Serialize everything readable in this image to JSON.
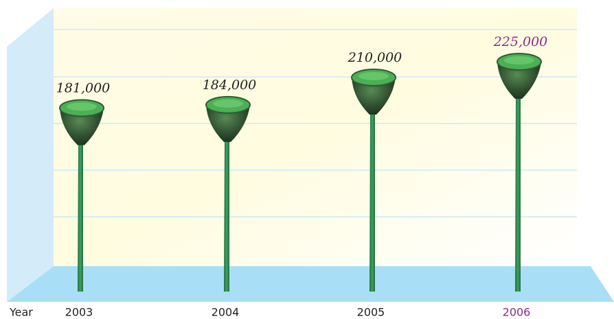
{
  "chart_data": {
    "type": "pictogram",
    "x_label": "Year",
    "categories": [
      "2003",
      "2004",
      "2005",
      "2006"
    ],
    "values": [
      181000,
      184000,
      210000,
      225000
    ],
    "value_labels": [
      "181,000",
      "184,000",
      "210,000",
      "225,000"
    ],
    "label_colors": [
      "#222222",
      "#222222",
      "#222222",
      "#8b2a8b"
    ],
    "color": "#2e7d4a"
  }
}
